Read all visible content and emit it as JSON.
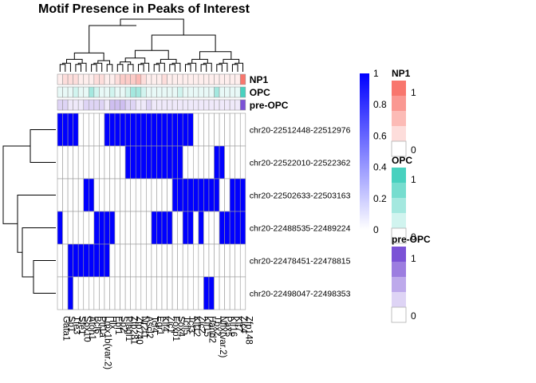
{
  "chart_data": {
    "type": "heatmap",
    "title": "Motif Presence in Peaks of Interest",
    "rows": [
      "chr20-22512448-22512976",
      "chr20-22522010-22522362",
      "chr20-22502633-22503163",
      "chr20-22488535-22489224",
      "chr20-22478451-22478815",
      "chr20-22498047-22498353"
    ],
    "columns": [
      "Gata1",
      "Sp1",
      "Tfe3",
      "Sfe1",
      "Sox10",
      "Atoh1",
      "Bcl6",
      "Ptf1a",
      "Lmx1b(var.2)",
      "Hlx",
      "Ebf1",
      "Sp2",
      "Plagl1",
      "Zfp281",
      "Zfp740",
      "Nr2f1",
      "Ascl2",
      "Tcf4",
      "Egr1",
      "Klf4",
      "Zic1",
      "Foxp1",
      "Sox4",
      "Tcfl5",
      "Tcf3",
      "Klf12",
      "Zic2",
      "Klf15",
      "Hand2",
      "Tbx2",
      "Nfix(var.2)",
      "Pax5",
      "Klf16",
      "Klf7",
      "Zic4",
      "Zfp148"
    ],
    "values": [
      [
        1,
        1,
        1,
        1,
        0,
        0,
        0,
        0,
        0,
        1,
        1,
        1,
        1,
        1,
        1,
        1,
        1,
        1,
        1,
        1,
        1,
        1,
        1,
        1,
        1,
        1,
        0,
        0,
        0,
        0,
        0,
        0,
        0,
        0,
        0,
        0
      ],
      [
        0,
        0,
        0,
        0,
        0,
        0,
        0,
        0,
        0,
        0,
        0,
        0,
        0,
        1,
        1,
        1,
        1,
        1,
        1,
        1,
        1,
        1,
        1,
        1,
        0,
        0,
        0,
        0,
        0,
        0,
        1,
        1,
        0,
        0,
        0,
        0
      ],
      [
        0,
        0,
        0,
        0,
        0,
        1,
        1,
        0,
        0,
        0,
        0,
        0,
        0,
        0,
        0,
        0,
        0,
        0,
        0,
        0,
        0,
        0,
        1,
        1,
        1,
        1,
        1,
        1,
        1,
        1,
        1,
        0,
        0,
        1,
        1,
        1
      ],
      [
        1,
        0,
        0,
        0,
        0,
        0,
        0,
        1,
        1,
        1,
        1,
        0,
        0,
        0,
        0,
        0,
        0,
        0,
        1,
        1,
        1,
        1,
        0,
        0,
        1,
        1,
        0,
        1,
        0,
        0,
        0,
        1,
        1,
        1,
        1,
        1
      ],
      [
        0,
        0,
        1,
        1,
        1,
        1,
        1,
        1,
        1,
        1,
        0,
        0,
        0,
        0,
        0,
        0,
        0,
        0,
        0,
        0,
        0,
        0,
        0,
        0,
        0,
        0,
        0,
        0,
        0,
        0,
        0,
        0,
        0,
        0,
        0,
        0
      ],
      [
        0,
        0,
        1,
        0,
        0,
        0,
        0,
        0,
        0,
        0,
        0,
        0,
        0,
        0,
        0,
        0,
        0,
        0,
        0,
        0,
        0,
        0,
        0,
        0,
        0,
        0,
        0,
        0,
        1,
        1,
        0,
        0,
        0,
        0,
        0,
        0
      ]
    ],
    "annotations": [
      {
        "name": "NP1",
        "color": "#f8766d",
        "values": [
          0.125,
          0.25,
          0.25,
          0.25,
          0.125,
          0.125,
          0.125,
          0.25,
          0.25,
          0.125,
          0.125,
          0.25,
          0.375,
          0.375,
          0.375,
          0.5,
          0.25,
          0.125,
          0.125,
          0.125,
          0.25,
          0.125,
          0.125,
          0.125,
          0.125,
          0.125,
          0.125,
          0.125,
          0.125,
          0.125,
          0.125,
          0.125,
          0.125,
          0.125,
          0.125,
          1.0
        ]
      },
      {
        "name": "OPC",
        "color": "#48d1bf",
        "values": [
          0.125,
          0.125,
          0.125,
          0.25,
          0.125,
          0.125,
          0.5,
          0.25,
          0.125,
          0.125,
          0.25,
          0.125,
          0.125,
          0.25,
          0.5,
          0.5,
          0.25,
          0.125,
          0.125,
          0.125,
          0.125,
          0.125,
          0.125,
          0.25,
          0.125,
          0.125,
          0.125,
          0.125,
          0.125,
          0.125,
          0.5,
          0.125,
          0.125,
          0.125,
          0.125,
          1.0
        ]
      },
      {
        "name": "pre-OPC",
        "color": "#7b52d6",
        "values": [
          0.25,
          0.25,
          0.125,
          0.125,
          0.125,
          0.25,
          0.25,
          0.25,
          0.25,
          0.125,
          0.375,
          0.375,
          0.375,
          0.25,
          0.25,
          0.125,
          0.125,
          0.25,
          0.125,
          0.125,
          0.125,
          0.125,
          0.125,
          0.125,
          0.125,
          0.125,
          0.125,
          0.125,
          0.125,
          0.125,
          0.125,
          0.125,
          0.125,
          0.125,
          0.125,
          1.0
        ]
      }
    ],
    "main_legend": {
      "ticks": [
        "1",
        "0.8",
        "0.6",
        "0.4",
        "0.2",
        "0"
      ],
      "color": "#0000ff"
    },
    "annotation_legend_ticks": [
      "1",
      "0"
    ],
    "row_dendrogram": true,
    "column_dendrogram": true,
    "grid": true
  }
}
